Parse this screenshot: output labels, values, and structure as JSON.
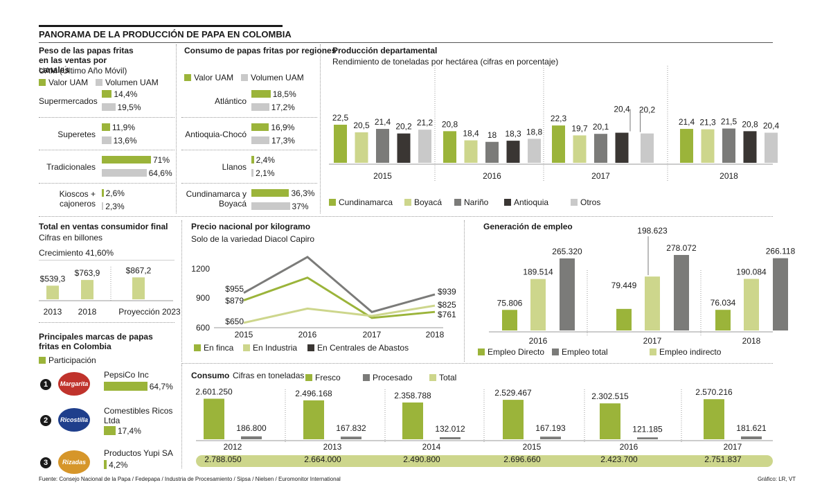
{
  "main_title": "PANORAMA DE LA PRODUCCIÓN DE PAPA EN COLOMBIA",
  "footer": {
    "source": "Fuente: Consejo Nacional de la Papa / Fedepapa / Industria de Procesamiento / Sipsa / Nielsen / Euromonitor International",
    "credit": "Gráfico: LR, VT"
  },
  "colors": {
    "green": "#9bb43a",
    "light_green": "#cdd68c",
    "gray": "#7b7b79",
    "dark": "#3a3633",
    "light_gray": "#c9c9c9",
    "pill": "#cdd68c"
  },
  "chart_data": [
    {
      "id": "canales",
      "type": "bar",
      "title": "Peso de las papas fritas en las ventas por canales",
      "subtitle": "UAM (Último Año Móvil)",
      "legend": [
        "Valor UAM",
        "Volumen UAM"
      ],
      "categories": [
        "Supermercados",
        "Superetes",
        "Tradicionales",
        "Kioscos + cajoneros"
      ],
      "series": [
        {
          "name": "Valor UAM",
          "values": [
            14.4,
            11.9,
            71,
            2.6
          ],
          "labels": [
            "14,4%",
            "11,9%",
            "71%",
            "2,6%"
          ]
        },
        {
          "name": "Volumen UAM",
          "values": [
            19.5,
            13.6,
            64.6,
            2.3
          ],
          "labels": [
            "19,5%",
            "13,6%",
            "64,6%",
            "2,3%"
          ]
        }
      ]
    },
    {
      "id": "regiones",
      "type": "bar",
      "title": "Consumo de papas fritas por regiones",
      "legend": [
        "Valor UAM",
        "Volumen UAM"
      ],
      "categories": [
        "Atlántico",
        "Antioquia-Chocó",
        "Llanos",
        "Cundinamarca y Boyacá"
      ],
      "series": [
        {
          "name": "Valor UAM",
          "values": [
            18.5,
            16.9,
            2.4,
            36.3
          ],
          "labels": [
            "18,5%",
            "16,9%",
            "2,4%",
            "36,3%"
          ]
        },
        {
          "name": "Volumen UAM",
          "values": [
            17.2,
            17.3,
            2.1,
            37
          ],
          "labels": [
            "17,2%",
            "17,3%",
            "2,1%",
            "37%"
          ]
        }
      ]
    },
    {
      "id": "departamental",
      "type": "bar",
      "title": "Producción departamental",
      "subtitle": "Rendimiento de toneladas por hectárea (cifras en porcentaje)",
      "categories": [
        "2015",
        "2016",
        "2017",
        "2018"
      ],
      "series": [
        {
          "name": "Cundinamarca",
          "values": [
            22.5,
            20.8,
            22.3,
            21.4
          ],
          "labels": [
            "22,5",
            "20,8",
            "22,3",
            "21,4"
          ]
        },
        {
          "name": "Boyacá",
          "values": [
            20.5,
            18.4,
            19.7,
            21.3
          ],
          "labels": [
            "20,5",
            "18,4",
            "19,7",
            "21,3"
          ]
        },
        {
          "name": "Nariño",
          "values": [
            21.4,
            18,
            20.1,
            21.5
          ],
          "labels": [
            "21,4",
            "18",
            "20,1",
            "21,5"
          ]
        },
        {
          "name": "Antioquia",
          "values": [
            20.2,
            18.3,
            20.4,
            20.8
          ],
          "labels": [
            "20,2",
            "18,3",
            "20,4",
            "20,8"
          ]
        },
        {
          "name": "Otros",
          "values": [
            21.2,
            18.8,
            20.2,
            20.4
          ],
          "labels": [
            "21,2",
            "18,8",
            "20,2",
            "20,4"
          ]
        }
      ]
    },
    {
      "id": "ventas",
      "type": "bar",
      "title": "Total en ventas consumidor final",
      "subtitle": "Cifras en billones",
      "growth_label": "Crecimiento",
      "growth_value": "41,60%",
      "categories": [
        "2013",
        "2018",
        "Proyección 2023"
      ],
      "values": [
        539.3,
        763.9,
        867.2
      ],
      "labels": [
        "$539,3",
        "$763,9",
        "$867,2"
      ]
    },
    {
      "id": "marcas",
      "type": "bar",
      "title": "Principales marcas de papas fritas en Colombia",
      "legend": [
        "Participación"
      ],
      "categories": [
        "PepsiCo Inc",
        "Comestibles Ricos Ltda",
        "Productos Yupi SA"
      ],
      "ranks": [
        "1",
        "2",
        "3"
      ],
      "logos": [
        "Margarita",
        "Ricostilla",
        "Rizadas"
      ],
      "values": [
        64.7,
        17.4,
        4.2
      ],
      "labels": [
        "64,7%",
        "17,4%",
        "4,2%"
      ]
    },
    {
      "id": "precio",
      "type": "line",
      "title": "Precio nacional por kilogramo",
      "subtitle": "Solo de la variedad Diacol Capiro",
      "x": [
        "2015",
        "2016",
        "2017",
        "2018"
      ],
      "y_ticks": [
        "1200",
        "900",
        "600"
      ],
      "ylim": [
        600,
        1200
      ],
      "series": [
        {
          "name": "En finca",
          "values": [
            879,
            1110,
            700,
            761
          ]
        },
        {
          "name": "En Industria",
          "values": [
            650,
            795,
            720,
            825
          ]
        },
        {
          "name": "En Centrales de Abastos",
          "values": [
            955,
            1320,
            760,
            939
          ]
        }
      ],
      "point_labels": {
        "start": [
          "$955",
          "$879",
          "$650"
        ],
        "end": [
          "$939",
          "$825",
          "$761"
        ]
      }
    },
    {
      "id": "empleo",
      "type": "bar",
      "title": "Generación de empleo",
      "categories": [
        "2016",
        "2017",
        "2018"
      ],
      "series": [
        {
          "name": "Empleo Directo",
          "values": [
            75806,
            79449,
            76034
          ],
          "labels": [
            "75.806",
            "79.449",
            "76.034"
          ]
        },
        {
          "name": "Empleo indirecto",
          "values": [
            189514,
            198623,
            190084
          ],
          "labels": [
            "189.514",
            "198.623",
            "190.084"
          ]
        },
        {
          "name": "Empleo total",
          "values": [
            265320,
            278072,
            266118
          ],
          "labels": [
            "265.320",
            "278.072",
            "266.118"
          ]
        }
      ]
    },
    {
      "id": "consumo",
      "type": "bar",
      "title": "Consumo",
      "subtitle": "Cifras en toneladas",
      "categories": [
        "2012",
        "2013",
        "2014",
        "2015",
        "2016",
        "2017"
      ],
      "series": [
        {
          "name": "Fresco",
          "values": [
            2601250,
            2496168,
            2358788,
            2529467,
            2302515,
            2570216
          ],
          "labels": [
            "2.601.250",
            "2.496.168",
            "2.358.788",
            "2.529.467",
            "2.302.515",
            "2.570.216"
          ]
        },
        {
          "name": "Procesado",
          "values": [
            186800,
            167832,
            132012,
            167193,
            121185,
            181621
          ],
          "labels": [
            "186.800",
            "167.832",
            "132.012",
            "167.193",
            "121.185",
            "181.621"
          ]
        },
        {
          "name": "Total",
          "values": [
            2788050,
            2664000,
            2490800,
            2696660,
            2423700,
            2751837
          ],
          "labels": [
            "2.788.050",
            "2.664.000",
            "2.490.800",
            "2.696.660",
            "2.423.700",
            "2.751.837"
          ]
        }
      ]
    }
  ]
}
